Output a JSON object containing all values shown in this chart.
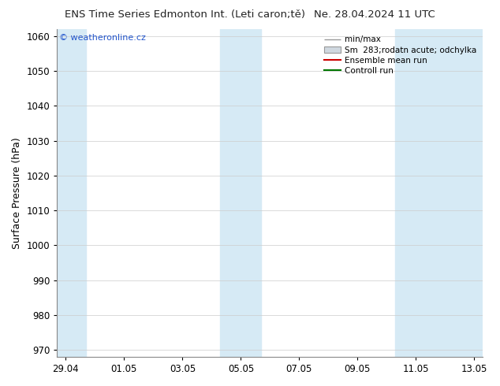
{
  "title_left": "ENS Time Series Edmonton Int. (Leti caron;tě)",
  "title_right": "Ne. 28.04.2024 11 UTC",
  "ylabel": "Surface Pressure (hPa)",
  "ylim": [
    968,
    1062
  ],
  "yticks": [
    970,
    980,
    990,
    1000,
    1010,
    1020,
    1030,
    1040,
    1050,
    1060
  ],
  "x_tick_labels": [
    "29.04",
    "01.05",
    "03.05",
    "05.05",
    "07.05",
    "09.05",
    "11.05",
    "13.05"
  ],
  "x_tick_positions": [
    0,
    2,
    4,
    6,
    8,
    10,
    12,
    14
  ],
  "xlim": [
    -0.3,
    14.3
  ],
  "shaded_bands": [
    {
      "x_start": -0.3,
      "x_end": 0.7
    },
    {
      "x_start": 5.3,
      "x_end": 6.7
    },
    {
      "x_start": 11.3,
      "x_end": 14.3
    }
  ],
  "shade_color": "#d6eaf5",
  "watermark_text": "© weatheronline.cz",
  "bg_color": "#ffffff",
  "plot_bg_color": "#ffffff",
  "grid_color": "#cccccc",
  "tick_label_fontsize": 8.5,
  "axis_label_fontsize": 9,
  "title_fontsize": 9.5
}
